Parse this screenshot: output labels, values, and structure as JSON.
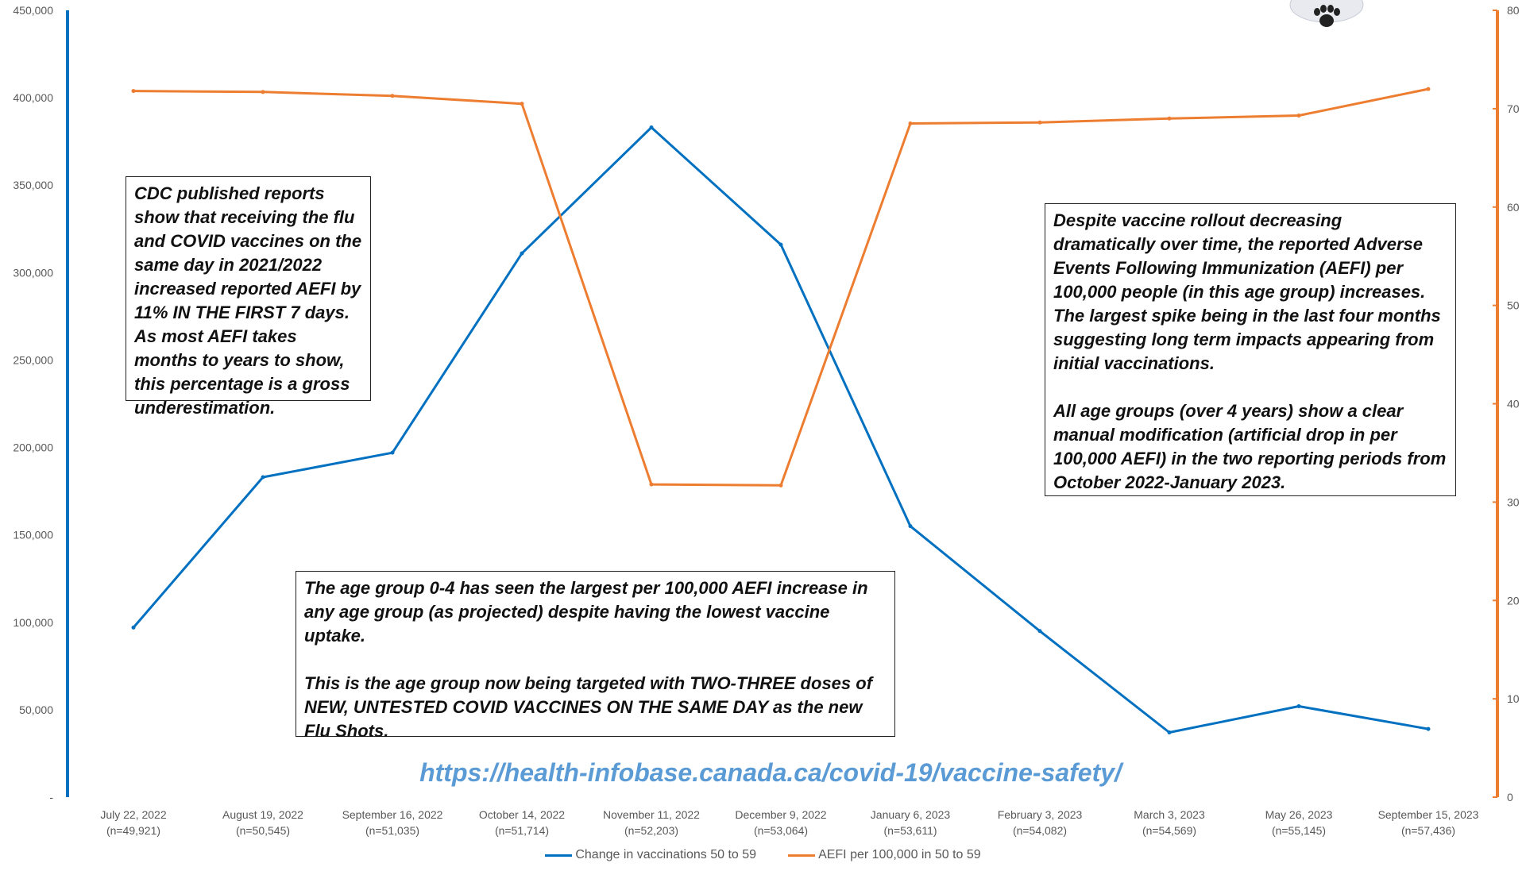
{
  "chart_data": {
    "type": "line",
    "categories": [
      "July 22, 2022",
      "August 19, 2022",
      "September 16, 2022",
      "October 14, 2022",
      "November 11, 2022",
      "December 9, 2022",
      "January 6, 2023",
      "February 3, 2023",
      "March 3, 2023",
      "May 26, 2023",
      "September 15, 2023"
    ],
    "category_sublabels": [
      "(n=49,921)",
      "(n=50,545)",
      "(n=51,035)",
      "(n=51,714)",
      "(n=52,203)",
      "(n=53,064)",
      "(n=53,611)",
      "(n=54,082)",
      "(n=54,569)",
      "(n=55,145)",
      "(n=57,436)"
    ],
    "series": [
      {
        "name": "Change in vaccinations 50 to 59",
        "axis": "left",
        "color": "#0070c0",
        "values": [
          97000,
          183000,
          197000,
          311000,
          383000,
          316000,
          155000,
          95000,
          37000,
          52000,
          39000
        ]
      },
      {
        "name": "AEFI per 100,000 in 50 to 59",
        "axis": "right",
        "color": "#ed7d31",
        "values": [
          71.8,
          71.7,
          71.3,
          70.5,
          31.8,
          31.7,
          68.5,
          68.6,
          69.0,
          69.3,
          72.0
        ]
      }
    ],
    "y_left": {
      "ylim": [
        0,
        450000
      ],
      "ticks": [
        "-",
        "50,000",
        "100,000",
        "150,000",
        "200,000",
        "250,000",
        "300,000",
        "350,000",
        "400,000",
        "450,000"
      ],
      "axis_color": "#0070c0"
    },
    "y_right": {
      "ylim": [
        0,
        80
      ],
      "ticks": [
        "0",
        "10",
        "20",
        "30",
        "40",
        "50",
        "60",
        "70",
        "80"
      ],
      "axis_color": "#ed7d31"
    },
    "grid": false,
    "legend_position": "bottom"
  },
  "callouts": {
    "cdc": "CDC published reports show that receiving the flu and COVID vaccines on the same day in 2021/2022 increased reported AEFI by 11% IN THE FIRST 7 days. As most AEFI takes months to years to show, this percentage is a gross underestimation.",
    "despite": "Despite vaccine rollout decreasing dramatically over time, the reported Adverse Events Following Immunization (AEFI) per 100,000 people (in this age group) increases. The largest spike being in the last four months suggesting long term impacts appearing from initial vaccinations.\n\nAll age groups (over 4 years) show a clear manual modification (artificial drop in per 100,000 AEFI)  in the two reporting periods from October 2022-January 2023.",
    "age_group": "The age group 0-4 has seen the largest per 100,000 AEFI increase in any age group (as projected) despite having the lowest vaccine uptake.\n\nThis is the age group now being targeted with TWO-THREE doses of NEW, UNTESTED COVID VACCINES ON THE SAME DAY as the new Flu Shots."
  },
  "source_url": "https://health-infobase.canada.ca/covid-19/vaccine-safety/",
  "legend": {
    "item1": "Change in vaccinations 50 to 59",
    "item2": "AEFI per 100,000 in 50 to 59"
  },
  "logo_icon": "paw-icon"
}
